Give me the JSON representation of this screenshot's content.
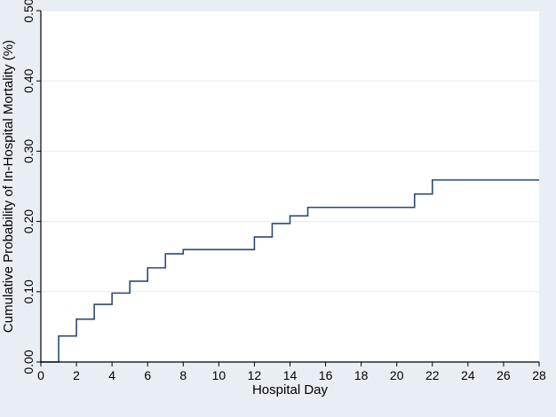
{
  "chart_data": {
    "type": "line",
    "subtype": "step",
    "title": "",
    "xlabel": "Hospital Day",
    "ylabel": "Cumulative Probability of In-Hospital Mortality (%)",
    "xlim": [
      0,
      28
    ],
    "ylim": [
      0,
      0.5
    ],
    "x_ticks": [
      0,
      2,
      4,
      6,
      8,
      10,
      12,
      14,
      16,
      18,
      20,
      22,
      24,
      26,
      28
    ],
    "y_ticks": [
      0,
      0.1,
      0.2,
      0.3,
      0.4,
      0.5
    ],
    "y_tick_labels": [
      "0.00",
      "0.10",
      "0.20",
      "0.30",
      "0.40",
      "0.50"
    ],
    "grid": true,
    "series": [
      {
        "x": [
          0,
          1,
          2,
          3,
          4,
          5,
          6,
          7,
          8,
          12,
          13,
          14,
          15,
          21,
          22,
          28
        ],
        "y": [
          0,
          0.037,
          0.061,
          0.082,
          0.098,
          0.115,
          0.134,
          0.154,
          0.16,
          0.178,
          0.197,
          0.208,
          0.22,
          0.239,
          0.259,
          0.259
        ]
      }
    ]
  },
  "colors": {
    "background": "#e8eef3",
    "plot_area": "#ffffff",
    "line": "#2a4a73",
    "grid": "#e6ebef"
  }
}
